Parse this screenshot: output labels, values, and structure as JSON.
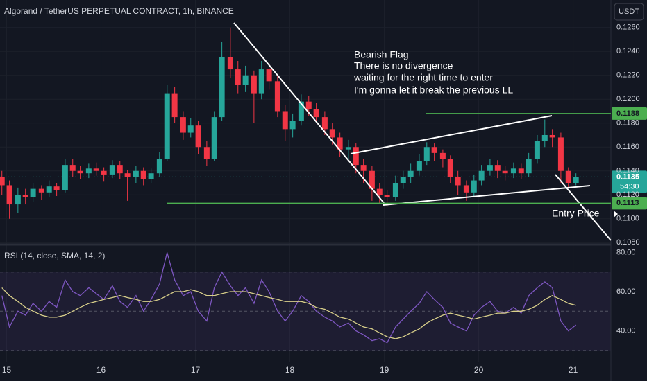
{
  "header": {
    "title": "Algorand / TetherUS PERPETUAL CONTRACT, 1h, BINANCE",
    "currency": "USDT"
  },
  "chart_data": [
    {
      "type": "candlestick",
      "x": [
        14.95,
        15.03,
        15.12,
        15.2,
        15.28,
        15.37,
        15.45,
        15.53,
        15.62,
        15.7,
        15.78,
        15.87,
        15.95,
        16.03,
        16.12,
        16.2,
        16.28,
        16.37,
        16.45,
        16.53,
        16.62,
        16.7,
        16.78,
        16.87,
        16.95,
        17.03,
        17.12,
        17.2,
        17.28,
        17.37,
        17.45,
        17.53,
        17.62,
        17.7,
        17.78,
        17.87,
        17.95,
        18.03,
        18.12,
        18.2,
        18.28,
        18.37,
        18.45,
        18.53,
        18.62,
        18.7,
        18.78,
        18.87,
        18.95,
        19.03,
        19.12,
        19.2,
        19.28,
        19.37,
        19.45,
        19.53,
        19.62,
        19.7,
        19.78,
        19.87,
        19.95,
        20.03,
        20.12,
        20.2,
        20.28,
        20.37,
        20.45,
        20.53,
        20.62,
        20.7,
        20.78,
        20.87,
        20.95,
        21.03
      ],
      "open": [
        0.1135,
        0.1128,
        0.1112,
        0.112,
        0.1118,
        0.1125,
        0.1122,
        0.1127,
        0.1124,
        0.1145,
        0.114,
        0.1138,
        0.1142,
        0.114,
        0.1137,
        0.1145,
        0.1138,
        0.1135,
        0.114,
        0.1133,
        0.1138,
        0.115,
        0.1205,
        0.1185,
        0.1172,
        0.1178,
        0.116,
        0.115,
        0.1185,
        0.1235,
        0.1225,
        0.1212,
        0.122,
        0.1205,
        0.1225,
        0.1215,
        0.119,
        0.1175,
        0.1182,
        0.1198,
        0.1192,
        0.1185,
        0.1175,
        0.1168,
        0.1158,
        0.116,
        0.1145,
        0.114,
        0.1125,
        0.112,
        0.1118,
        0.113,
        0.1135,
        0.114,
        0.1148,
        0.116,
        0.1155,
        0.115,
        0.1135,
        0.1128,
        0.1122,
        0.1132,
        0.114,
        0.1145,
        0.114,
        0.1138,
        0.1142,
        0.1138,
        0.115,
        0.1165,
        0.117,
        0.1168,
        0.114,
        0.113
      ],
      "high": [
        0.114,
        0.1132,
        0.1126,
        0.1125,
        0.113,
        0.1128,
        0.1132,
        0.113,
        0.115,
        0.115,
        0.1144,
        0.1146,
        0.1147,
        0.1143,
        0.1149,
        0.1148,
        0.1141,
        0.1144,
        0.1143,
        0.1142,
        0.1156,
        0.1212,
        0.121,
        0.119,
        0.1184,
        0.1182,
        0.1165,
        0.119,
        0.1248,
        0.126,
        0.1232,
        0.1228,
        0.1224,
        0.1232,
        0.123,
        0.122,
        0.1195,
        0.1188,
        0.1204,
        0.1203,
        0.1197,
        0.119,
        0.118,
        0.1172,
        0.1166,
        0.1163,
        0.115,
        0.1144,
        0.113,
        0.1124,
        0.1136,
        0.114,
        0.1146,
        0.1154,
        0.1164,
        0.1163,
        0.1158,
        0.1153,
        0.114,
        0.1132,
        0.1137,
        0.1145,
        0.115,
        0.1149,
        0.1144,
        0.1147,
        0.1146,
        0.1155,
        0.117,
        0.1183,
        0.1175,
        0.1172,
        0.1143,
        0.1138
      ],
      "low": [
        0.112,
        0.11,
        0.1105,
        0.1112,
        0.1114,
        0.1116,
        0.1118,
        0.1119,
        0.1122,
        0.1135,
        0.1133,
        0.1134,
        0.1136,
        0.1131,
        0.1134,
        0.1133,
        0.1115,
        0.113,
        0.1128,
        0.113,
        0.1135,
        0.1148,
        0.118,
        0.1166,
        0.1168,
        0.1154,
        0.1144,
        0.1148,
        0.1182,
        0.1218,
        0.1205,
        0.1206,
        0.118,
        0.12,
        0.1208,
        0.1185,
        0.1165,
        0.1168,
        0.1178,
        0.1186,
        0.118,
        0.117,
        0.1162,
        0.1152,
        0.115,
        0.1138,
        0.113,
        0.1115,
        0.1113,
        0.111,
        0.1115,
        0.1125,
        0.113,
        0.1136,
        0.1145,
        0.1148,
        0.1143,
        0.113,
        0.112,
        0.1115,
        0.1118,
        0.1128,
        0.1136,
        0.1134,
        0.1132,
        0.1134,
        0.1133,
        0.1135,
        0.1146,
        0.116,
        0.116,
        0.113,
        0.1126,
        0.1128
      ],
      "close": [
        0.1128,
        0.1112,
        0.112,
        0.1118,
        0.1125,
        0.1122,
        0.1127,
        0.1124,
        0.1145,
        0.114,
        0.1138,
        0.1142,
        0.114,
        0.1137,
        0.1145,
        0.1138,
        0.1135,
        0.114,
        0.1133,
        0.1138,
        0.115,
        0.1205,
        0.1185,
        0.1172,
        0.1178,
        0.116,
        0.115,
        0.1185,
        0.1235,
        0.1225,
        0.1212,
        0.122,
        0.1205,
        0.1225,
        0.1215,
        0.119,
        0.1175,
        0.1182,
        0.1198,
        0.1192,
        0.1185,
        0.1175,
        0.1168,
        0.1158,
        0.116,
        0.1145,
        0.114,
        0.1125,
        0.112,
        0.1118,
        0.113,
        0.1135,
        0.114,
        0.1148,
        0.116,
        0.1155,
        0.115,
        0.1135,
        0.1128,
        0.1122,
        0.1132,
        0.114,
        0.1145,
        0.114,
        0.1138,
        0.1142,
        0.1138,
        0.115,
        0.1165,
        0.117,
        0.1168,
        0.114,
        0.113,
        0.1135
      ],
      "up_color": "#26a69a",
      "down_color": "#f23645",
      "xlim": [
        14.93,
        21.4
      ],
      "xticks": [
        15,
        16,
        17,
        18,
        19,
        20,
        21
      ],
      "ylim": [
        0.1079,
        0.1283
      ],
      "yticks": [
        {
          "value": 0.108,
          "label": "0.1080"
        },
        {
          "value": 0.11,
          "label": "0.1100"
        },
        {
          "value": 0.112,
          "label": "0.1120"
        },
        {
          "value": 0.114,
          "label": "0.1140"
        },
        {
          "value": 0.116,
          "label": "0.1160"
        },
        {
          "value": 0.118,
          "label": "0.1180"
        },
        {
          "value": 0.12,
          "label": "0.1200"
        },
        {
          "value": 0.122,
          "label": "0.1220"
        },
        {
          "value": 0.124,
          "label": "0.1240"
        },
        {
          "value": 0.126,
          "label": "0.1260"
        }
      ],
      "last_price": {
        "value": 0.1135,
        "label": "0.1135",
        "countdown": "54:30"
      },
      "levels": [
        {
          "value": 0.1188,
          "label": "0.1188"
        },
        {
          "value": 0.1113,
          "label": "0.1113"
        }
      ],
      "level_color": "#4caf50",
      "annotation": [
        "Bearish Flag",
        "There is no divergence",
        "waiting for the right time to enter",
        "I'm gonna let it break the previous LL"
      ],
      "entry_label": "Entry Price"
    },
    {
      "type": "line",
      "title": "RSI (14, close, SMA, 14, 2)",
      "series": [
        {
          "color": "#7e57c2",
          "values": [
            58,
            42,
            50,
            48,
            54,
            50,
            55,
            52,
            66,
            60,
            58,
            62,
            59,
            56,
            63,
            55,
            52,
            58,
            50,
            56,
            64,
            80,
            66,
            58,
            60,
            50,
            45,
            62,
            70,
            63,
            58,
            62,
            54,
            66,
            60,
            50,
            45,
            50,
            58,
            55,
            50,
            47,
            45,
            42,
            44,
            40,
            38,
            35,
            36,
            34,
            42,
            46,
            50,
            54,
            60,
            56,
            52,
            44,
            42,
            40,
            48,
            52,
            55,
            50,
            49,
            52,
            49,
            58,
            62,
            65,
            62,
            45,
            40,
            43
          ]
        },
        {
          "color": "#d8cf8a",
          "values": [
            62,
            58,
            55,
            52,
            50,
            48,
            47,
            47,
            48,
            50,
            52,
            54,
            55,
            56,
            57,
            58,
            57,
            56,
            55,
            55,
            56,
            58,
            60,
            60,
            61,
            60,
            58,
            58,
            59,
            60,
            60,
            60,
            59,
            58,
            57,
            56,
            55,
            55,
            55,
            54,
            52,
            51,
            49,
            47,
            46,
            44,
            42,
            41,
            39,
            37,
            36,
            37,
            39,
            41,
            44,
            46,
            48,
            49,
            48,
            47,
            46,
            47,
            48,
            49,
            49,
            50,
            50,
            51,
            53,
            56,
            58,
            56,
            54,
            53
          ]
        }
      ],
      "ylim": [
        25,
        83
      ],
      "yticks": [
        {
          "value": 40,
          "label": "40.00"
        },
        {
          "value": 60,
          "label": "60.00"
        },
        {
          "value": 80,
          "label": "80.00"
        }
      ],
      "hlines": [
        70,
        50,
        30
      ],
      "band_color": "#7e57c2"
    }
  ]
}
